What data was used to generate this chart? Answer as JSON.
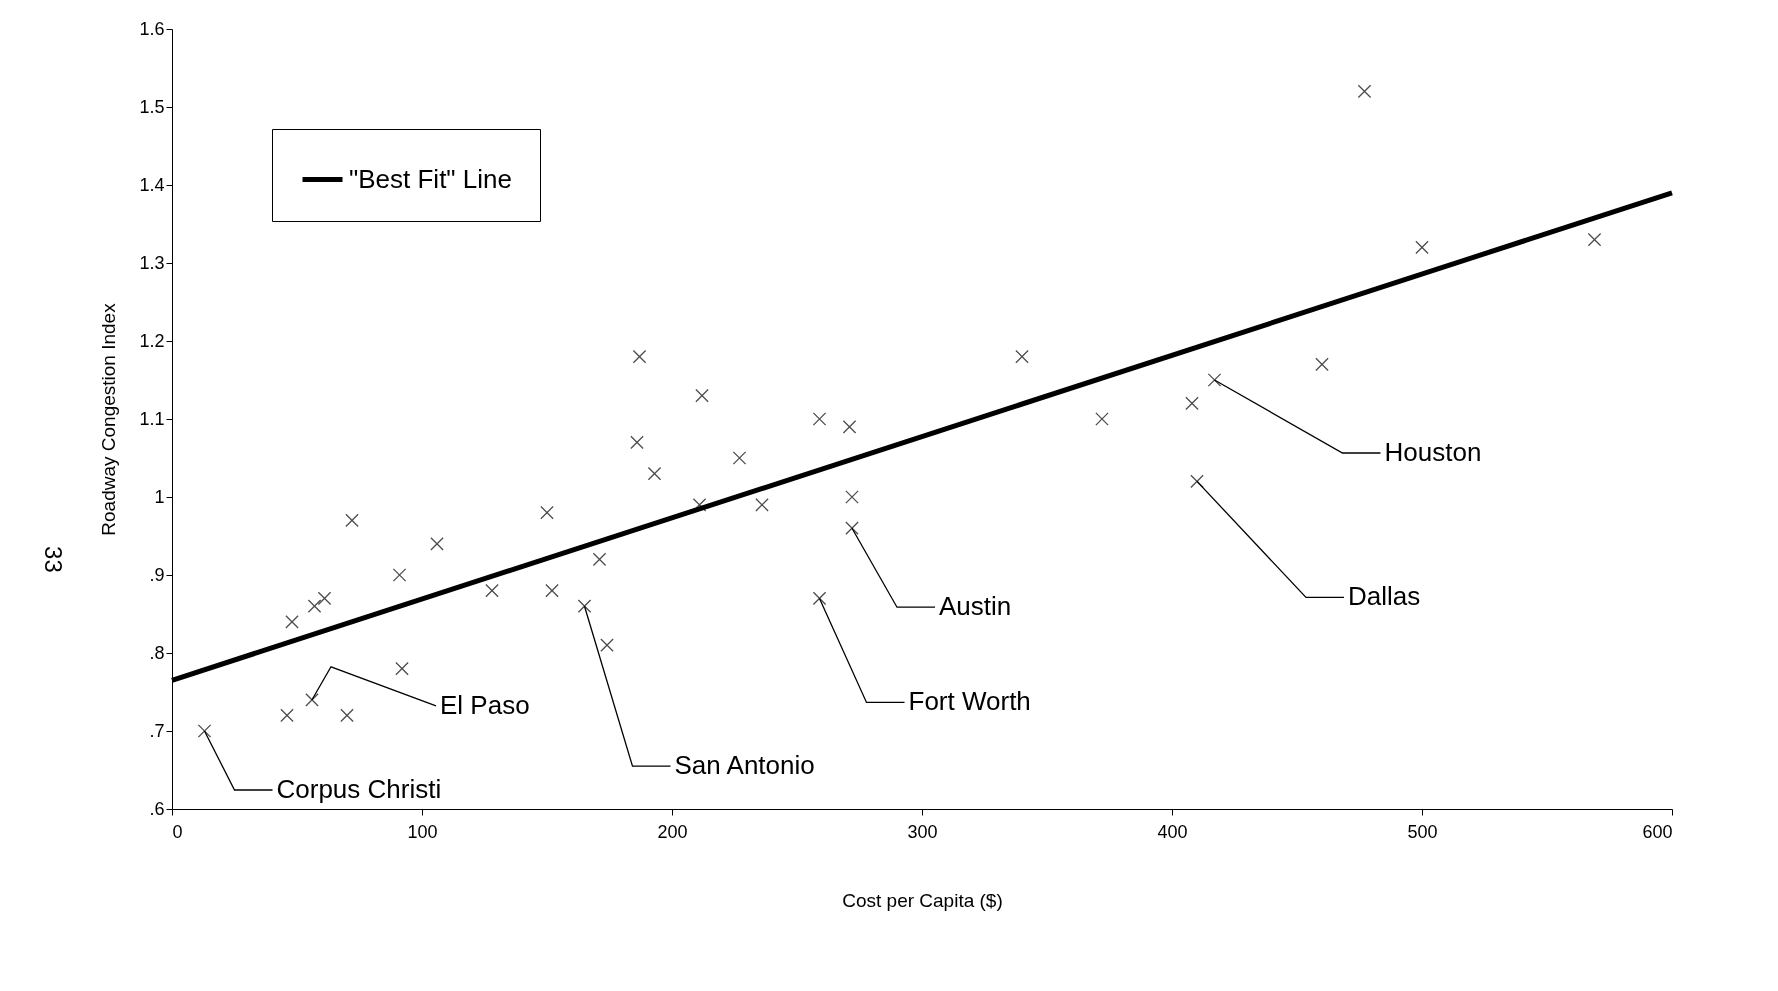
{
  "chart_data": {
    "type": "scatter",
    "xlabel": "Cost per Capita ($)",
    "ylabel": "Roadway Congestion Index",
    "xlim": [
      0,
      600
    ],
    "ylim": [
      0.6,
      1.6
    ],
    "xticks": [
      0,
      100,
      200,
      300,
      400,
      500,
      600
    ],
    "yticks": [
      {
        "value": 0.6,
        "label": ".6"
      },
      {
        "value": 0.7,
        "label": ".7"
      },
      {
        "value": 0.8,
        "label": ".8"
      },
      {
        "value": 0.9,
        "label": ".9"
      },
      1,
      1.1,
      1.2,
      1.3,
      1.4,
      1.5,
      1.6
    ],
    "grid": false,
    "legend": "top left",
    "series": [
      {
        "marker": "cross",
        "color": "#000000",
        "x": [
          13,
          46,
          56,
          70,
          92,
          48,
          57,
          61,
          72,
          91,
          106,
          128,
          150,
          152,
          165,
          171,
          174,
          187,
          186,
          193,
          211,
          212,
          227,
          236,
          259,
          271,
          272,
          272,
          259,
          340,
          372,
          408,
          417,
          410,
          460,
          477,
          500,
          569
        ],
        "values": [
          0.7,
          0.72,
          0.74,
          0.72,
          0.78,
          0.84,
          0.86,
          0.87,
          0.97,
          0.9,
          0.94,
          0.88,
          0.98,
          0.88,
          0.86,
          0.92,
          0.81,
          1.18,
          1.07,
          1.03,
          0.99,
          1.13,
          1.05,
          0.99,
          1.1,
          1.09,
          1.0,
          0.96,
          0.87,
          1.18,
          1.1,
          1.12,
          1.15,
          1.02,
          1.17,
          1.52,
          1.32,
          1.33
        ]
      },
      {
        "type": "line",
        "name": "\"Best Fit\" Line",
        "color": "#000000",
        "x": [
          0,
          600
        ],
        "values": [
          0.765,
          1.39
        ]
      }
    ],
    "annotations": [
      {
        "text": "Corpus Christi",
        "x": 13,
        "y": 0.7
      },
      {
        "text": "El Paso",
        "x": 56,
        "y": 0.74
      },
      {
        "text": "San Antonio",
        "x": 165,
        "y": 0.86
      },
      {
        "text": "Fort Worth",
        "x": 259,
        "y": 0.87
      },
      {
        "text": "Austin",
        "x": 272,
        "y": 0.96
      },
      {
        "text": "Dallas",
        "x": 410,
        "y": 1.02
      },
      {
        "text": "Houston",
        "x": 417,
        "y": 1.15
      },
      "33"
    ]
  }
}
